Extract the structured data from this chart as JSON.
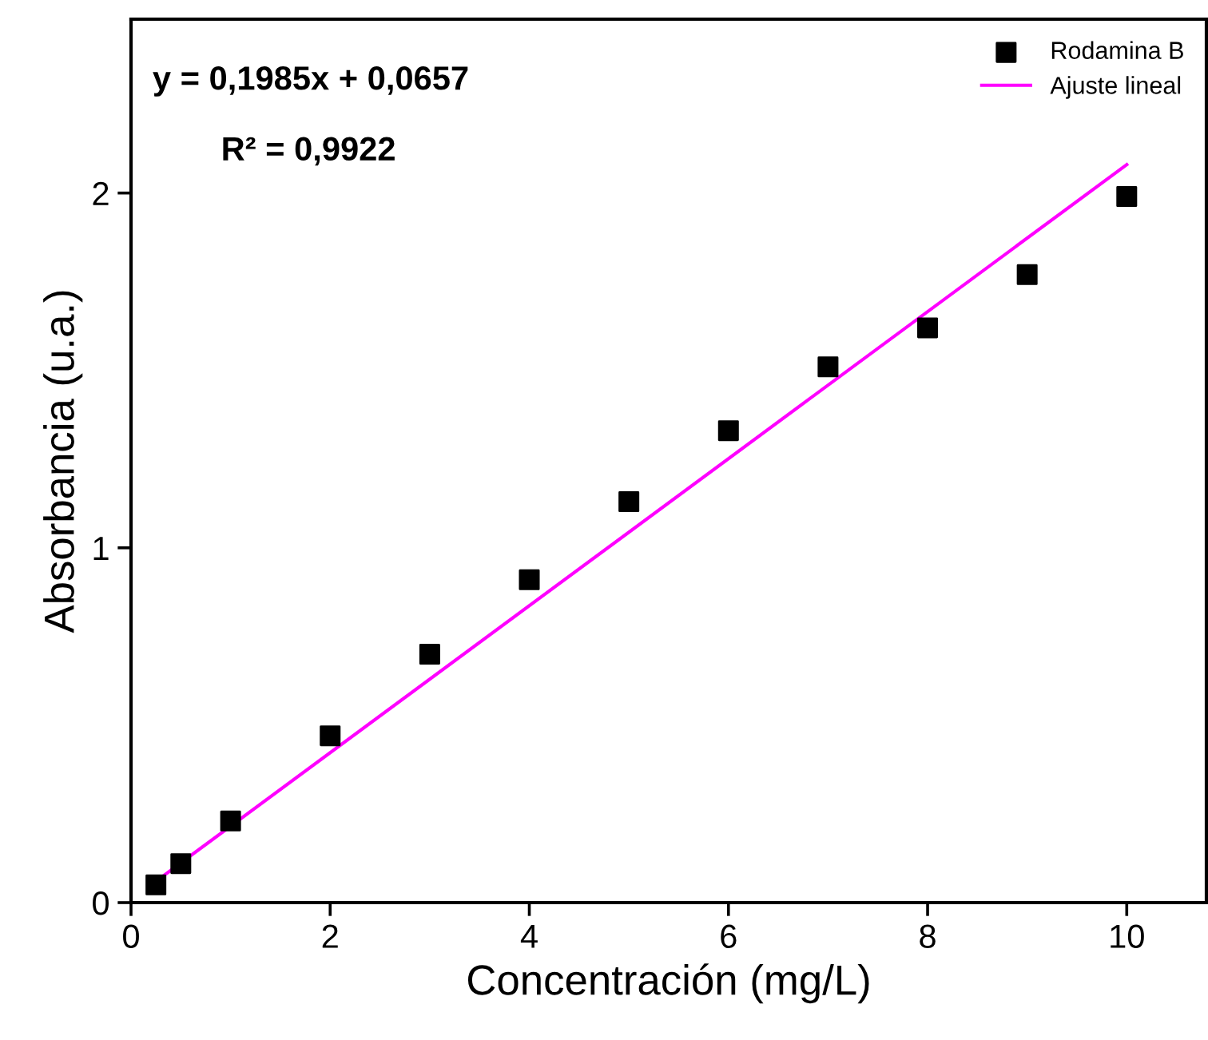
{
  "chart_data": {
    "type": "scatter",
    "xlabel": "Concentración (mg/L)",
    "ylabel": "Absorbancia (u.a.)",
    "annotations": [
      "y = 0,1985x + 0,0657",
      "R² = 0,9922"
    ],
    "series": [
      {
        "name": "Rodamina B",
        "color": "#000000",
        "marker": "square",
        "x": [
          0.25,
          0.5,
          1,
          2,
          3,
          4,
          5,
          6,
          7,
          8,
          9,
          10
        ],
        "values": [
          0.05,
          0.11,
          0.23,
          0.47,
          0.7,
          0.91,
          1.13,
          1.33,
          1.51,
          1.62,
          1.77,
          1.99
        ]
      },
      {
        "name": "Ajuste lineal",
        "type": "line",
        "color": "#ff00ff",
        "line_style": "solid",
        "x": [
          0.25,
          10
        ],
        "values": [
          0.06,
          2.08
        ]
      }
    ],
    "xlim": [
      0,
      10.8
    ],
    "ylim": [
      0,
      2.49
    ],
    "xticks": [
      0,
      2,
      4,
      6,
      8,
      10
    ],
    "yticks": [
      0,
      1,
      2
    ],
    "grid": false,
    "legend": "top right"
  }
}
